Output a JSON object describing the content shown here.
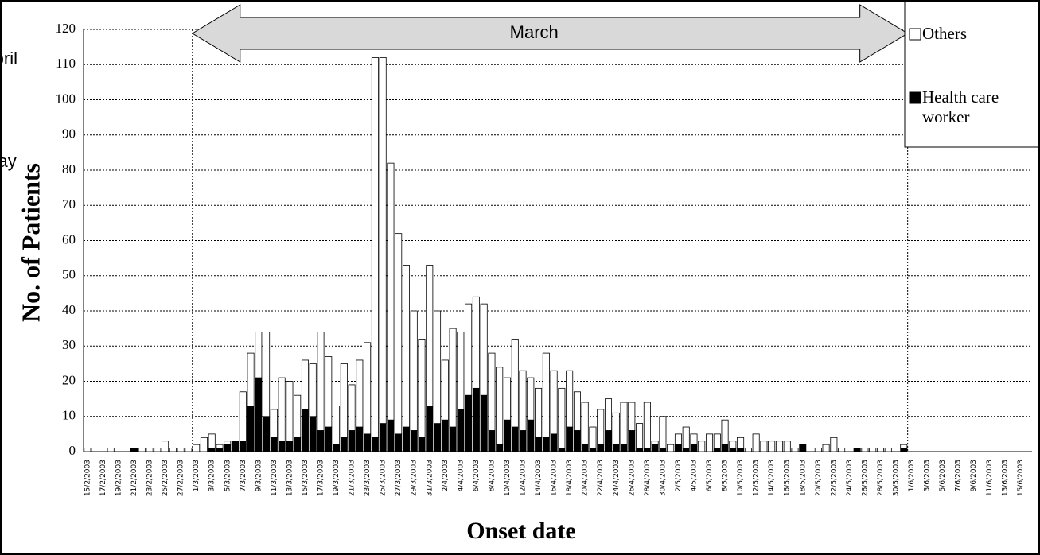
{
  "chart_data": {
    "type": "bar",
    "stacked": true,
    "ylabel": "No. of Patients",
    "xlabel": "Onset date",
    "categories": [
      "15/2/2003",
      null,
      "17/2/2003",
      null,
      "19/2/2003",
      null,
      "21/2/2003",
      null,
      "23/2/2003",
      null,
      "25/2/2003",
      null,
      "27/2/2003",
      null,
      "1/3/2003",
      null,
      "3/3/2003",
      null,
      "5/3/2003",
      null,
      "7/3/2003",
      null,
      "9/3/2003",
      null,
      "11/3/2003",
      null,
      "13/3/2003",
      null,
      "15/3/2003",
      null,
      "17/3/2003",
      null,
      "19/3/2003",
      null,
      "21/3/2003",
      null,
      "23/3/2003",
      null,
      "25/3/2003",
      null,
      "27/3/2003",
      null,
      "29/3/2003",
      null,
      "31/3/2003",
      null,
      "2/4/2003",
      null,
      "4/4/2003",
      null,
      "6/4/2003",
      null,
      "8/4/2003",
      null,
      "10/4/2003",
      null,
      "12/4/2003",
      null,
      "14/4/2003",
      null,
      "16/4/2003",
      null,
      "18/4/2003",
      null,
      "20/4/2003",
      null,
      "22/4/2003",
      null,
      "24/4/2003",
      null,
      "26/4/2003",
      null,
      "28/4/2003",
      null,
      "30/4/2003",
      null,
      "2/5/2003",
      null,
      "4/5/2003",
      null,
      "6/5/2003",
      null,
      "8/5/2003",
      null,
      "10/5/2003",
      null,
      "12/5/2003",
      null,
      "14/5/2003",
      null,
      "16/5/2003",
      null,
      "18/5/2003",
      null,
      "20/5/2003",
      null,
      "22/5/2003",
      null,
      "24/5/2003",
      null,
      "26/5/2003",
      null,
      "28/5/2003",
      null,
      "30/5/2003",
      null,
      "1/6/2003",
      null,
      "3/6/2003",
      null,
      "5/6/2003",
      null,
      "7/6/2003",
      null,
      "9/6/2003",
      null,
      "11/6/2003",
      null,
      "13/6/2003",
      null,
      "15/6/2003",
      null
    ],
    "series": [
      {
        "name": "Health care worker",
        "color": "#000000",
        "values": [
          0,
          0,
          0,
          0,
          0,
          0,
          1,
          0,
          0,
          0,
          0,
          0,
          0,
          0,
          0,
          0,
          1,
          1,
          2,
          3,
          3,
          13,
          21,
          10,
          4,
          3,
          3,
          4,
          12,
          10,
          6,
          7,
          2,
          4,
          6,
          7,
          5,
          4,
          8,
          9,
          5,
          7,
          6,
          4,
          13,
          8,
          9,
          7,
          12,
          16,
          18,
          16,
          6,
          2,
          9,
          7,
          6,
          9,
          4,
          4,
          5,
          1,
          7,
          6,
          2,
          1,
          2,
          6,
          2,
          2,
          6,
          1,
          1,
          2,
          1,
          0,
          2,
          1,
          2,
          0,
          0,
          1,
          2,
          1,
          1,
          0,
          0,
          0,
          0,
          0,
          0,
          0,
          2,
          0,
          0,
          0,
          0,
          0,
          0,
          1,
          0,
          0,
          0,
          0,
          0,
          1,
          0,
          0,
          0,
          0,
          0,
          0,
          0,
          0,
          0,
          0,
          0,
          0,
          0,
          0,
          0,
          0
        ]
      },
      {
        "name": "Others",
        "color": "#ffffff",
        "values": [
          1,
          0,
          0,
          1,
          0,
          0,
          0,
          1,
          1,
          1,
          3,
          1,
          1,
          1,
          2,
          4,
          4,
          1,
          1,
          0,
          14,
          15,
          13,
          24,
          8,
          18,
          17,
          12,
          14,
          15,
          28,
          20,
          11,
          21,
          13,
          19,
          26,
          108,
          104,
          73,
          57,
          46,
          34,
          28,
          40,
          32,
          17,
          28,
          22,
          26,
          26,
          26,
          22,
          22,
          12,
          25,
          17,
          12,
          14,
          24,
          18,
          17,
          16,
          11,
          12,
          6,
          10,
          9,
          9,
          12,
          8,
          7,
          13,
          1,
          9,
          2,
          3,
          6,
          3,
          3,
          5,
          4,
          7,
          2,
          3,
          1,
          5,
          3,
          3,
          3,
          3,
          1,
          0,
          0,
          1,
          2,
          4,
          1,
          0,
          0,
          1,
          1,
          1,
          1,
          0,
          1,
          0,
          0,
          0,
          0,
          0,
          0,
          0,
          0,
          0,
          0,
          0,
          0,
          0,
          0,
          0,
          0
        ]
      }
    ],
    "ylim": [
      0,
      120
    ],
    "yticks": [
      0,
      10,
      20,
      30,
      40,
      50,
      60,
      70,
      80,
      90,
      100,
      110,
      120
    ],
    "grid": true,
    "legend": "top-right",
    "annotations": [
      {
        "text": "March",
        "color": "#d9d9d9"
      },
      {
        "text": "April",
        "color": "#a6a6a6"
      },
      {
        "text": "May",
        "color": "#ffffff"
      }
    ]
  }
}
